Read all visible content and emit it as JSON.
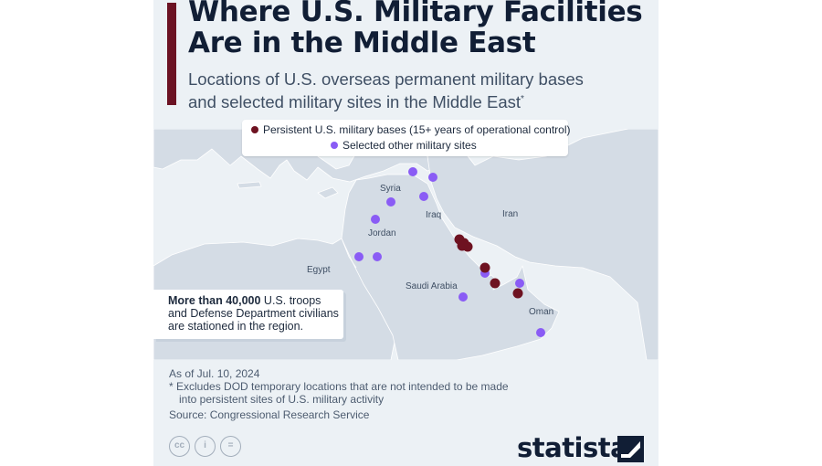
{
  "title_line1": "Where U.S. Military Facilities",
  "title_line2": "Are in the Middle East",
  "subtitle_line1": "Locations of U.S. overseas permanent military bases",
  "subtitle_line2": "and selected military sites in the Middle East",
  "subtitle_mark": "*",
  "legend": {
    "persistent_label": "Persistent U.S. military bases (15+ years of operational control)",
    "other_label": "Selected other military sites"
  },
  "colors": {
    "persistent": "#6e1221",
    "other": "#8a5cf5",
    "land": "#d4dce5",
    "water": "#ecf1f5",
    "accent": "#6b1223"
  },
  "labels": {
    "syria": "Syria",
    "iraq": "Iraq",
    "iran": "Iran",
    "jordan": "Jordan",
    "egypt": "Egypt",
    "saudi": "Saudi Arabia",
    "oman": "Oman"
  },
  "note": {
    "bold": "More than 40,000",
    "rest": " U.S. troops and Defense Department civilians are stationed in the region."
  },
  "footer": {
    "as_of": "As of Jul. 10, 2024",
    "excl_line1": "* Excludes DOD temporary locations that are not intended to be made",
    "excl_line2": "into persistent sites of U.S. military activity",
    "source": "Source: Congressional Research Service"
  },
  "license_icons": [
    "cc-icon",
    "attribution-icon",
    "no-derivatives-icon"
  ],
  "brand": "statista"
}
